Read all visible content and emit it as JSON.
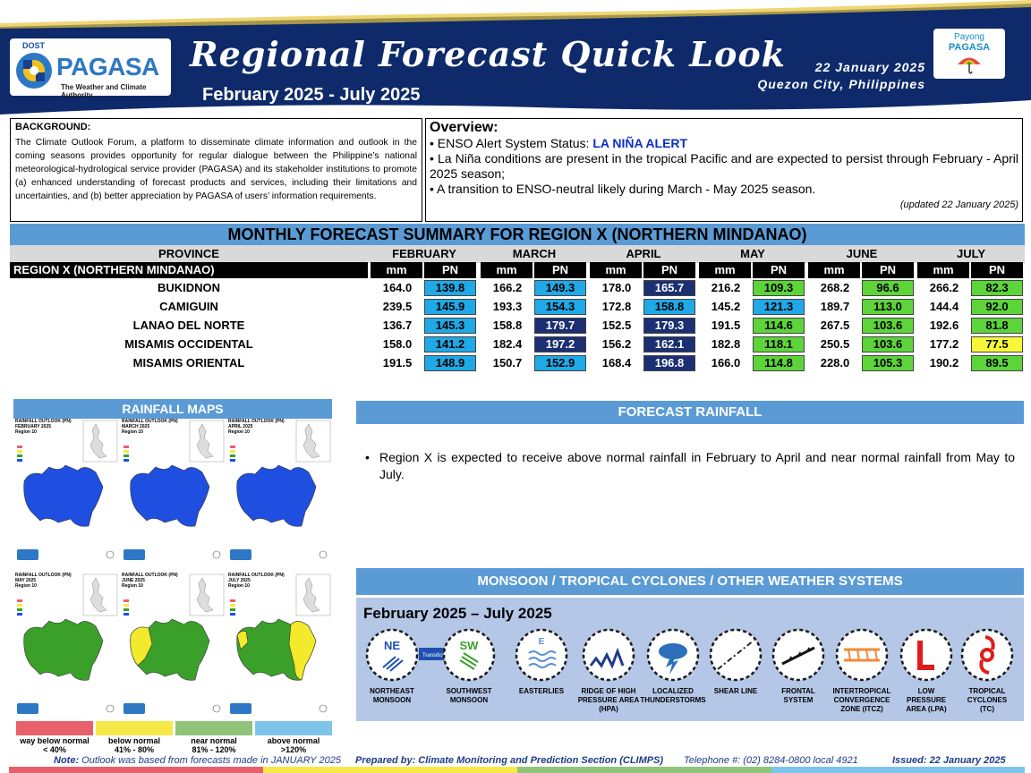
{
  "header": {
    "logo_dost": "DOST",
    "logo_name": "PAGASA",
    "logo_tagline": "The Weather and Climate Authority",
    "title": "Regional Forecast Quick Look",
    "period": "February 2025 - July 2025",
    "date": "22 January 2025",
    "place": "Quezon City, Philippines",
    "payong_1": "Payong",
    "payong_2": "PAGASA"
  },
  "background": {
    "title": "BACKGROUND:",
    "text": "The Climate Outlook Forum, a platform to disseminate climate information and outlook in the coming seasons provides opportunity for regular dialogue between the Philippine’s national meteorological-hydrological service provider (PAGASA) and its stakeholder institutions to promote (a) enhanced understanding of forecast products and services, including their limitations and uncertainties, and (b) better appreciation by PAGASA of users’ information requirements."
  },
  "overview": {
    "title": "Overview:",
    "enso_label": "ENSO Alert System Status: ",
    "enso_status": "LA NIÑA ALERT",
    "line2": "La Niña conditions are present in the tropical Pacific and are expected to persist through February - April 2025 season;",
    "line3": "A transition to ENSO-neutral likely during March - May 2025 season.",
    "updated": "(updated 22 January 2025)"
  },
  "table": {
    "title": "MONTHLY FORECAST SUMMARY FOR REGION X (NORTHERN MINDANAO)",
    "province_header": "PROVINCE",
    "region_label": "REGION X (NORTHERN MINDANAO)",
    "months": [
      "FEBRUARY",
      "MARCH",
      "APRIL",
      "MAY",
      "JUNE",
      "JULY"
    ],
    "mm_label": "mm",
    "pn_label": "PN",
    "rows": [
      {
        "name": "BUKIDNON",
        "mm": [
          "164.0",
          "166.2",
          "178.0",
          "216.2",
          "268.2",
          "266.2"
        ],
        "pn": [
          "139.8",
          "149.3",
          "165.7",
          "109.3",
          "96.6",
          "82.3"
        ]
      },
      {
        "name": "CAMIGUIN",
        "mm": [
          "239.5",
          "193.3",
          "172.8",
          "145.2",
          "189.7",
          "144.4"
        ],
        "pn": [
          "145.9",
          "154.3",
          "158.8",
          "121.3",
          "113.0",
          "92.0"
        ]
      },
      {
        "name": "LANAO DEL NORTE",
        "mm": [
          "136.7",
          "158.8",
          "152.5",
          "191.5",
          "267.5",
          "192.6"
        ],
        "pn": [
          "145.3",
          "179.7",
          "179.3",
          "114.6",
          "103.6",
          "81.8"
        ]
      },
      {
        "name": "MISAMIS OCCIDENTAL",
        "mm": [
          "158.0",
          "182.4",
          "156.2",
          "182.8",
          "250.5",
          "177.2"
        ],
        "pn": [
          "141.2",
          "197.2",
          "162.1",
          "118.1",
          "103.6",
          "77.5"
        ]
      },
      {
        "name": "MISAMIS ORIENTAL",
        "mm": [
          "191.5",
          "150.7",
          "168.4",
          "166.0",
          "228.0",
          "190.2"
        ],
        "pn": [
          "148.9",
          "152.9",
          "196.8",
          "114.8",
          "105.3",
          "89.5"
        ]
      }
    ],
    "pn_colors": [
      [
        "#1fa9e6",
        "#1fa9e6",
        "#1b2f73",
        "#5cd43a",
        "#5cd43a",
        "#5cd43a"
      ],
      [
        "#1fa9e6",
        "#1fa9e6",
        "#1fa9e6",
        "#1fa9e6",
        "#5cd43a",
        "#5cd43a"
      ],
      [
        "#1fa9e6",
        "#1b2f73",
        "#1b2f73",
        "#5cd43a",
        "#5cd43a",
        "#5cd43a"
      ],
      [
        "#1fa9e6",
        "#1b2f73",
        "#1b2f73",
        "#5cd43a",
        "#5cd43a",
        "#f7f73a"
      ],
      [
        "#1fa9e6",
        "#1fa9e6",
        "#1b2f73",
        "#5cd43a",
        "#5cd43a",
        "#5cd43a"
      ]
    ]
  },
  "maps": {
    "title": "RAINFALL MAPS",
    "tiles": [
      {
        "t1": "RAINFALL OUTLOOK (PN)",
        "t2": "FEBRUARY 2025",
        "t3": "Region 10",
        "color": "#1f4fe0"
      },
      {
        "t1": "RAINFALL OUTLOOK (PN)",
        "t2": "MARCH 2025",
        "t3": "Region 10",
        "color": "#1f4fe0"
      },
      {
        "t1": "RAINFALL OUTLOOK (PN)",
        "t2": "APRIL 2025",
        "t3": "Region 10",
        "color": "#1f4fe0"
      },
      {
        "t1": "RAINFALL OUTLOOK (PN)",
        "t2": "MAY 2025",
        "t3": "Region 10",
        "color": "#3aa02a"
      },
      {
        "t1": "RAINFALL OUTLOOK (PN)",
        "t2": "JUNE 2025",
        "t3": "Region 10",
        "color": "#3aa02a"
      },
      {
        "t1": "RAINFALL OUTLOOK (PN)",
        "t2": "JULY 2025",
        "t3": "Region 10",
        "color": "#3aa02a"
      }
    ],
    "legend": [
      {
        "l1": "way below normal",
        "l2": "< 40%",
        "color": "#e8616a"
      },
      {
        "l1": "below normal",
        "l2": "41%  -  80%",
        "color": "#f7e84a"
      },
      {
        "l1": "near normal",
        "l2": "81% - 120%",
        "color": "#8fc47a"
      },
      {
        "l1": "above normal",
        "l2": ">120%",
        "color": "#7fc4ea"
      }
    ]
  },
  "forecast": {
    "title": "FORECAST RAINFALL",
    "bullet": "•",
    "text": "Region X is expected to receive above normal rainfall in February to April and near normal rainfall from May to July."
  },
  "monsoon": {
    "title": "MONSOON / TROPICAL CYCLONES / OTHER WEATHER SYSTEMS",
    "period": "February 2025 – July 2025",
    "ne": "NE",
    "sw": "SW",
    "e": "E",
    "transition": "Transition",
    "systems": [
      {
        "l1": "NORTHEAST",
        "l2": "MONSOON",
        "icon": "northeast-monsoon-icon"
      },
      {
        "l1": "SOUTHWEST",
        "l2": "MONSOON",
        "icon": "southwest-monsoon-icon"
      },
      {
        "l1": "EASTERLIES",
        "l2": "",
        "icon": "easterlies-icon"
      },
      {
        "l1": "RIDGE OF HIGH",
        "l2": "PRESSURE AREA",
        "l3": "(HPA)",
        "icon": "ridge-icon"
      },
      {
        "l1": "LOCALIZED",
        "l2": "THUNDERSTORMS",
        "icon": "thunderstorm-icon"
      },
      {
        "l1": "SHEAR LINE",
        "l2": "",
        "icon": "shear-line-icon"
      },
      {
        "l1": "FRONTAL",
        "l2": "SYSTEM",
        "icon": "frontal-system-icon"
      },
      {
        "l1": "INTERTROPICAL",
        "l2": "CONVERGENCE",
        "l3": "ZONE (ITCZ)",
        "icon": "itcz-icon"
      },
      {
        "l1": "LOW",
        "l2": "PRESSURE",
        "l3": "AREA (LPA)",
        "icon": "lpa-icon"
      },
      {
        "l1": "TROPICAL",
        "l2": "CYCLONES",
        "l3": "(TC)",
        "icon": "tropical-cyclone-icon"
      }
    ]
  },
  "footer": {
    "note_label": "Note:",
    "note": " Outlook was based from forecasts made in JANUARY 2025",
    "prepared": "Prepared by: Climate Monitoring and Prediction Section (CLIMPS)",
    "telephone": "Telephone #: (02) 8284-0800 local 4921",
    "issued": "Issued: 22 January 2025"
  }
}
